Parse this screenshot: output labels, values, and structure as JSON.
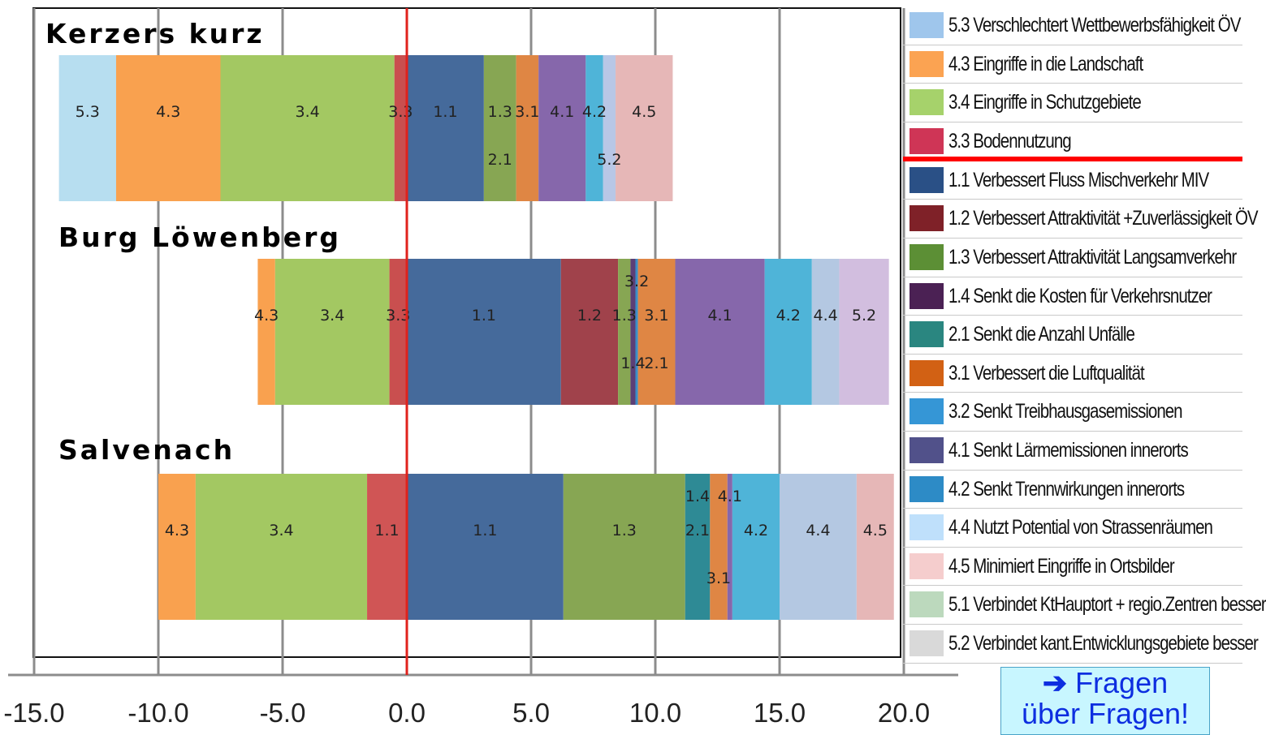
{
  "chart_data": {
    "type": "bar",
    "stacked": true,
    "orientation": "horizontal",
    "xlim": [
      -15,
      20
    ],
    "x_ticks": [
      "-15.0",
      "-10.0",
      "-5.0",
      "0.0",
      "5.0",
      "10.0",
      "15.0",
      "20.0"
    ],
    "grid": true,
    "groups": [
      {
        "title": "Kerzers kurz",
        "segments": [
          {
            "label": "5.3",
            "start": -14.0,
            "end": -11.7,
            "color": "#b7def0"
          },
          {
            "label": "4.3",
            "start": -11.7,
            "end": -7.5,
            "color": "#f9a14f"
          },
          {
            "label": "3.4",
            "start": -7.5,
            "end": -0.5,
            "color": "#a3c862"
          },
          {
            "label": "3.3",
            "start": -0.5,
            "end": 0.0,
            "color": "#c94f4f"
          },
          {
            "label": "1.1",
            "start": 0.0,
            "end": 3.1,
            "color": "#456a9b"
          },
          {
            "label": "1.3",
            "start": 3.1,
            "end": 4.4,
            "color": "#87a653"
          },
          {
            "label": "2.1",
            "start": 3.1,
            "end": 4.4,
            "color": "#87a653",
            "label_pos": "below"
          },
          {
            "label": "3.1",
            "start": 4.4,
            "end": 5.3,
            "color": "#df8644"
          },
          {
            "label": "4.1",
            "start": 5.3,
            "end": 7.2,
            "color": "#8667ab"
          },
          {
            "label": "4.2",
            "start": 7.2,
            "end": 7.9,
            "color": "#4fb4d8"
          },
          {
            "label": "5.2",
            "start": 7.9,
            "end": 8.4,
            "color": "#b8c7e6",
            "label_pos": "below"
          },
          {
            "label": "4.5",
            "start": 8.4,
            "end": 10.7,
            "color": "#e6b7b7"
          }
        ]
      },
      {
        "title": "Burg Löwenberg",
        "segments": [
          {
            "label": "4.3",
            "start": -6.0,
            "end": -5.3,
            "color": "#f9a14f"
          },
          {
            "label": "3.4",
            "start": -5.3,
            "end": -0.7,
            "color": "#a3c862"
          },
          {
            "label": "3.3",
            "start": -0.7,
            "end": 0.0,
            "color": "#c94f4f"
          },
          {
            "label": "1.1",
            "start": 0.0,
            "end": 6.2,
            "color": "#456a9b"
          },
          {
            "label": "1.2",
            "start": 6.2,
            "end": 8.5,
            "color": "#a0424b"
          },
          {
            "label": "1.3",
            "start": 8.5,
            "end": 9.0,
            "color": "#87a653"
          },
          {
            "label": "1.4",
            "start": 9.0,
            "end": 9.2,
            "color": "#5b3f77",
            "label_pos": "below"
          },
          {
            "label": "3.2",
            "start": 9.2,
            "end": 9.3,
            "color": "#3a8fc8",
            "label_pos": "above"
          },
          {
            "label": "3.1",
            "start": 9.3,
            "end": 10.8,
            "color": "#df8644"
          },
          {
            "label": "2.1",
            "start": 9.3,
            "end": 10.8,
            "color": "#df8644",
            "label_pos": "below"
          },
          {
            "label": "4.1",
            "start": 10.8,
            "end": 14.4,
            "color": "#8667ab"
          },
          {
            "label": "4.2",
            "start": 14.4,
            "end": 16.3,
            "color": "#4fb4d8"
          },
          {
            "label": "4.4",
            "start": 16.3,
            "end": 17.4,
            "color": "#b4c8e2"
          },
          {
            "label": "5.2",
            "start": 17.4,
            "end": 19.4,
            "color": "#d2bedf"
          }
        ]
      },
      {
        "title": "Salvenach",
        "segments": [
          {
            "label": "4.3",
            "start": -10.0,
            "end": -8.5,
            "color": "#f9a14f"
          },
          {
            "label": "3.4",
            "start": -8.5,
            "end": -1.6,
            "color": "#a3c862"
          },
          {
            "label": "1.1",
            "start": -1.6,
            "end": 0.0,
            "color": "#d05555"
          },
          {
            "label": "1.1",
            "start": 0.0,
            "end": 6.3,
            "color": "#456a9b"
          },
          {
            "label": "1.3",
            "start": 6.3,
            "end": 11.2,
            "color": "#87a653"
          },
          {
            "label": "1.4",
            "start": 11.2,
            "end": 12.2,
            "color": "#2e8a95",
            "label_pos": "above"
          },
          {
            "label": "2.1",
            "start": 11.2,
            "end": 12.2,
            "color": "#2e8a95"
          },
          {
            "label": "3.1",
            "start": 12.2,
            "end": 12.9,
            "color": "#df8644",
            "label_pos": "below"
          },
          {
            "label": "4.1",
            "start": 12.9,
            "end": 13.1,
            "color": "#8667ab",
            "label_pos": "above"
          },
          {
            "label": "4.2",
            "start": 13.1,
            "end": 15.0,
            "color": "#4fb4d8"
          },
          {
            "label": "4.4",
            "start": 15.0,
            "end": 18.1,
            "color": "#b4c8e2"
          },
          {
            "label": "4.5",
            "start": 18.1,
            "end": 19.6,
            "color": "#e6b7b7"
          }
        ]
      }
    ]
  },
  "legend": [
    {
      "label": "5.3  Verschlechtert Wettbewerbsfähigkeit ÖV",
      "color": "#9fc6ec"
    },
    {
      "label": "4.3  Eingriffe in die Landschaft",
      "color": "#fba352"
    },
    {
      "label": "3.4  Eingriffe in Schutzgebiete",
      "color": "#a6d26b"
    },
    {
      "label": "3.3  Bodennutzung",
      "color": "#cf3556",
      "separator_after": true
    },
    {
      "label": "1.1  Verbessert Fluss Mischverkehr MIV",
      "color": "#2a5086"
    },
    {
      "label": "1.2  Verbessert Attraktivität +Zuverlässigkeit ÖV",
      "color": "#7f2128"
    },
    {
      "label": "1.3  Verbessert Attraktivität Langsamverkehr",
      "color": "#5c8f35"
    },
    {
      "label": "1.4  Senkt die Kosten für Verkehrsnutzer",
      "color": "#4b2154"
    },
    {
      "label": "2.1  Senkt die Anzahl Unfälle",
      "color": "#2a8680"
    },
    {
      "label": "3.1  Verbessert die Luftqualität",
      "color": "#d26114"
    },
    {
      "label": "3.2  Senkt Treibhausgasemissionen",
      "color": "#3596d6"
    },
    {
      "label": "4.1  Senkt Lärmemissionen innerorts",
      "color": "#51518a"
    },
    {
      "label": "4.2  Senkt Trennwirkungen innerorts",
      "color": "#2d8bc6"
    },
    {
      "label": "4.4  Nutzt Potential von Strassenräumen",
      "color": "#bfe0fb"
    },
    {
      "label": "4.5  Minimiert Eingriffe in Ortsbilder",
      "color": "#f5cdcd"
    },
    {
      "label": "5.1  Verbindet KtHauptort + regio.Zentren besser",
      "color": "#bcd9bd"
    },
    {
      "label": "5.2  Verbindet kant.Entwicklungsgebiete besser",
      "color": "#d9d9d9"
    }
  ],
  "cta": {
    "arrow": "➔",
    "line1": "Fragen",
    "line2": "über Fragen!"
  }
}
